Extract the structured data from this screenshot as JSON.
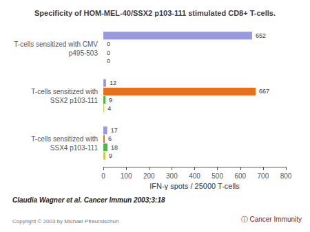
{
  "chart_data": {
    "type": "bar",
    "orientation": "horizontal",
    "title": "Specificity of HOM-MEL-40/SSX2 p103-111 stimulated CD8+ T-cells.",
    "xlabel": "IFN-γ spots / 25000 T-cells",
    "categories": [
      "T-cells sensitized with CMV\np495-503",
      "T-cells sensitized with\nSSX2 p103-111",
      "T-cells sensitized with\nSSX4 p103-111"
    ],
    "series": [
      {
        "color": "#9999dd",
        "values": [
          652,
          12,
          17
        ]
      },
      {
        "color": "#e8701a",
        "values": [
          0,
          667,
          6
        ]
      },
      {
        "color": "#44bb44",
        "values": [
          0,
          9,
          18
        ]
      },
      {
        "color": "#cccc44",
        "values": [
          0,
          4,
          9
        ]
      }
    ],
    "xlim": [
      0,
      800
    ],
    "xticks": [
      0,
      100,
      200,
      300,
      400,
      500,
      600,
      700,
      800
    ],
    "data_labels": true,
    "grid": false,
    "annotations": [
      "Claudia Wagner et al. Cancer Immun 2003;3:18",
      "Copyright © 2003 by Michael Pfreundschuh",
      "ⓘ Cancer Immunity"
    ]
  }
}
